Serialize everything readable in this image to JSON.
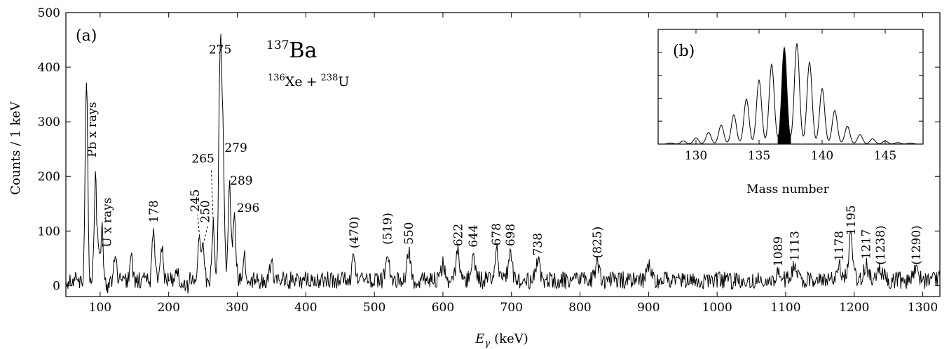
{
  "chart_data": [
    {
      "type": "line",
      "panel_label": "(a)",
      "nucleus_mass": "137",
      "nucleus_symbol": "Ba",
      "reaction": {
        "beam_mass": "136",
        "beam": "Xe",
        "plus": "+",
        "target_mass": "238",
        "target": "U"
      },
      "xlabel_symbol": "E",
      "xlabel_sub": "γ",
      "xlabel_unit": "(keV)",
      "ylabel": "Counts / 1 keV",
      "xlim": [
        50,
        1325
      ],
      "ylim": [
        -20,
        500
      ],
      "x_ticks": [
        100,
        200,
        300,
        400,
        500,
        600,
        700,
        800,
        900,
        1000,
        1100,
        1200,
        1300
      ],
      "y_ticks": [
        0,
        100,
        200,
        300,
        400,
        500
      ],
      "background_level": 10,
      "peaks": [
        {
          "x": 80,
          "y": 380
        },
        {
          "x": 93,
          "y": 198
        },
        {
          "x": 98,
          "y": 75
        },
        {
          "x": 103,
          "y": 100
        },
        {
          "x": 122,
          "y": 55
        },
        {
          "x": 145,
          "y": 55
        },
        {
          "x": 178,
          "y": 108
        },
        {
          "x": 190,
          "y": 75
        },
        {
          "x": 212,
          "y": 45
        },
        {
          "x": 245,
          "y": 85
        },
        {
          "x": 250,
          "y": 70
        },
        {
          "x": 265,
          "y": 110
        },
        {
          "x": 275,
          "y": 418
        },
        {
          "x": 279,
          "y": 245
        },
        {
          "x": 289,
          "y": 180
        },
        {
          "x": 296,
          "y": 125
        },
        {
          "x": 310,
          "y": 60
        },
        {
          "x": 350,
          "y": 45
        },
        {
          "x": 470,
          "y": 60
        },
        {
          "x": 519,
          "y": 65
        },
        {
          "x": 550,
          "y": 68
        },
        {
          "x": 600,
          "y": 40
        },
        {
          "x": 622,
          "y": 65
        },
        {
          "x": 644,
          "y": 62
        },
        {
          "x": 678,
          "y": 65
        },
        {
          "x": 698,
          "y": 65
        },
        {
          "x": 738,
          "y": 48
        },
        {
          "x": 825,
          "y": 40
        },
        {
          "x": 900,
          "y": 40
        },
        {
          "x": 1089,
          "y": 28
        },
        {
          "x": 1113,
          "y": 35
        },
        {
          "x": 1178,
          "y": 35
        },
        {
          "x": 1195,
          "y": 85
        },
        {
          "x": 1217,
          "y": 38
        },
        {
          "x": 1238,
          "y": 30
        },
        {
          "x": 1290,
          "y": 30
        }
      ],
      "annotations": [
        {
          "text": "Pb x rays",
          "x": 88,
          "y": 235,
          "rotate": true
        },
        {
          "text": "U x rays",
          "x": 110,
          "y": 70,
          "rotate": true
        },
        {
          "text": "178",
          "x": 178,
          "y": 115,
          "rotate": true
        },
        {
          "text": "245",
          "x": 238,
          "y": 135,
          "rotate": true
        },
        {
          "text": "250",
          "x": 253,
          "y": 115,
          "rotate": true
        },
        {
          "text": "265",
          "x": 250,
          "y": 225,
          "rotate": false
        },
        {
          "text": "275",
          "x": 275,
          "y": 425,
          "rotate": false
        },
        {
          "text": "279",
          "x": 298,
          "y": 245,
          "rotate": false
        },
        {
          "text": "289",
          "x": 306,
          "y": 185,
          "rotate": false
        },
        {
          "text": "296",
          "x": 316,
          "y": 135,
          "rotate": false
        },
        {
          "text": "(470)",
          "x": 470,
          "y": 68,
          "rotate": true
        },
        {
          "text": "(519)",
          "x": 519,
          "y": 75,
          "rotate": true
        },
        {
          "text": "550",
          "x": 550,
          "y": 75,
          "rotate": true
        },
        {
          "text": "622",
          "x": 622,
          "y": 72,
          "rotate": true
        },
        {
          "text": "644",
          "x": 644,
          "y": 70,
          "rotate": true
        },
        {
          "text": "678",
          "x": 678,
          "y": 73,
          "rotate": true
        },
        {
          "text": "698",
          "x": 698,
          "y": 72,
          "rotate": true
        },
        {
          "text": "738",
          "x": 738,
          "y": 55,
          "rotate": true
        },
        {
          "text": "(825)",
          "x": 825,
          "y": 50,
          "rotate": true
        },
        {
          "text": "1089",
          "x": 1089,
          "y": 35,
          "rotate": true
        },
        {
          "text": "1113",
          "x": 1113,
          "y": 45,
          "rotate": true
        },
        {
          "text": "1178",
          "x": 1178,
          "y": 45,
          "rotate": true
        },
        {
          "text": "1195",
          "x": 1195,
          "y": 92,
          "rotate": true
        },
        {
          "text": "1217",
          "x": 1217,
          "y": 48,
          "rotate": true
        },
        {
          "text": "(1238)",
          "x": 1238,
          "y": 38,
          "rotate": true
        },
        {
          "text": "(1290)",
          "x": 1290,
          "y": 38,
          "rotate": true
        }
      ]
    },
    {
      "type": "line",
      "panel_label": "(b)",
      "xlabel": "Mass number",
      "xlim": [
        127,
        148
      ],
      "ylim": [
        0,
        1
      ],
      "x_ticks": [
        130,
        135,
        140,
        145
      ],
      "highlighted_mass": 137,
      "masses": [
        128,
        129,
        130,
        131,
        132,
        133,
        134,
        135,
        136,
        137,
        138,
        139,
        140,
        141,
        142,
        143,
        144,
        145,
        146,
        147
      ],
      "relative_yields": [
        0.01,
        0.03,
        0.06,
        0.11,
        0.18,
        0.28,
        0.43,
        0.61,
        0.76,
        0.92,
        0.96,
        0.78,
        0.53,
        0.32,
        0.17,
        0.09,
        0.05,
        0.03,
        0.015,
        0.01
      ]
    }
  ]
}
